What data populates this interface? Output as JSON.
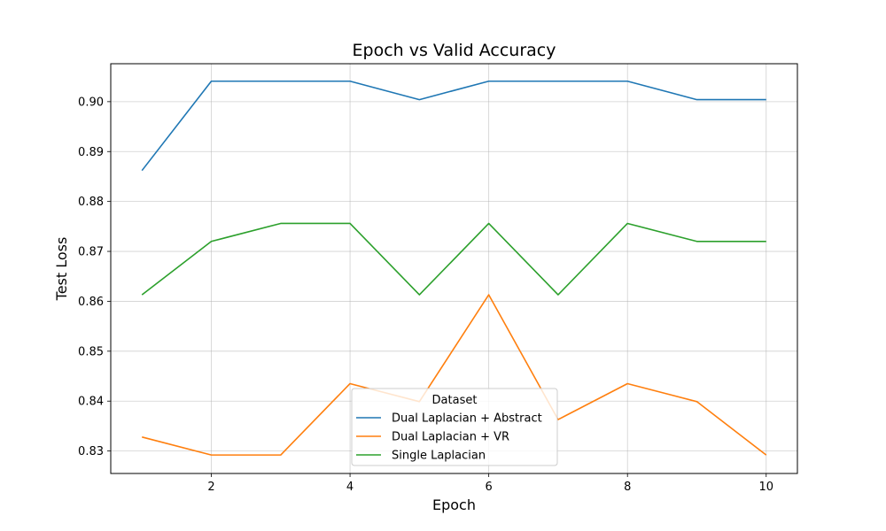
{
  "chart_data": {
    "type": "line",
    "title": "Epoch vs Valid Accuracy",
    "xlabel": "Epoch",
    "ylabel": "Test Loss",
    "x": [
      1,
      2,
      3,
      4,
      5,
      6,
      7,
      8,
      9,
      10
    ],
    "xlim": [
      0.55,
      10.45
    ],
    "ylim": [
      0.8255,
      0.9076
    ],
    "xticks": [
      2,
      4,
      6,
      8,
      10
    ],
    "yticks": [
      0.83,
      0.84,
      0.85,
      0.86,
      0.87,
      0.88,
      0.89,
      0.9
    ],
    "ytick_labels": [
      "0.83",
      "0.84",
      "0.85",
      "0.86",
      "0.87",
      "0.88",
      "0.89",
      "0.90"
    ],
    "grid": true,
    "legend": {
      "title": "Dataset",
      "placement": "lower-center"
    },
    "series": [
      {
        "name": "Dual Laplacian + Abstract",
        "color": "#1f77b4",
        "values": [
          0.8862,
          0.9041,
          0.9041,
          0.9041,
          0.9004,
          0.9041,
          0.9041,
          0.9041,
          0.9004,
          0.9004
        ]
      },
      {
        "name": "Dual Laplacian + VR",
        "color": "#ff7f0e",
        "values": [
          0.8328,
          0.8292,
          0.8292,
          0.8435,
          0.8399,
          0.8613,
          0.8363,
          0.8435,
          0.8399,
          0.8292
        ]
      },
      {
        "name": "Single Laplacian",
        "color": "#2ca02c",
        "values": [
          0.8613,
          0.872,
          0.8756,
          0.8756,
          0.8613,
          0.8756,
          0.8613,
          0.8756,
          0.872,
          0.872
        ]
      }
    ]
  }
}
